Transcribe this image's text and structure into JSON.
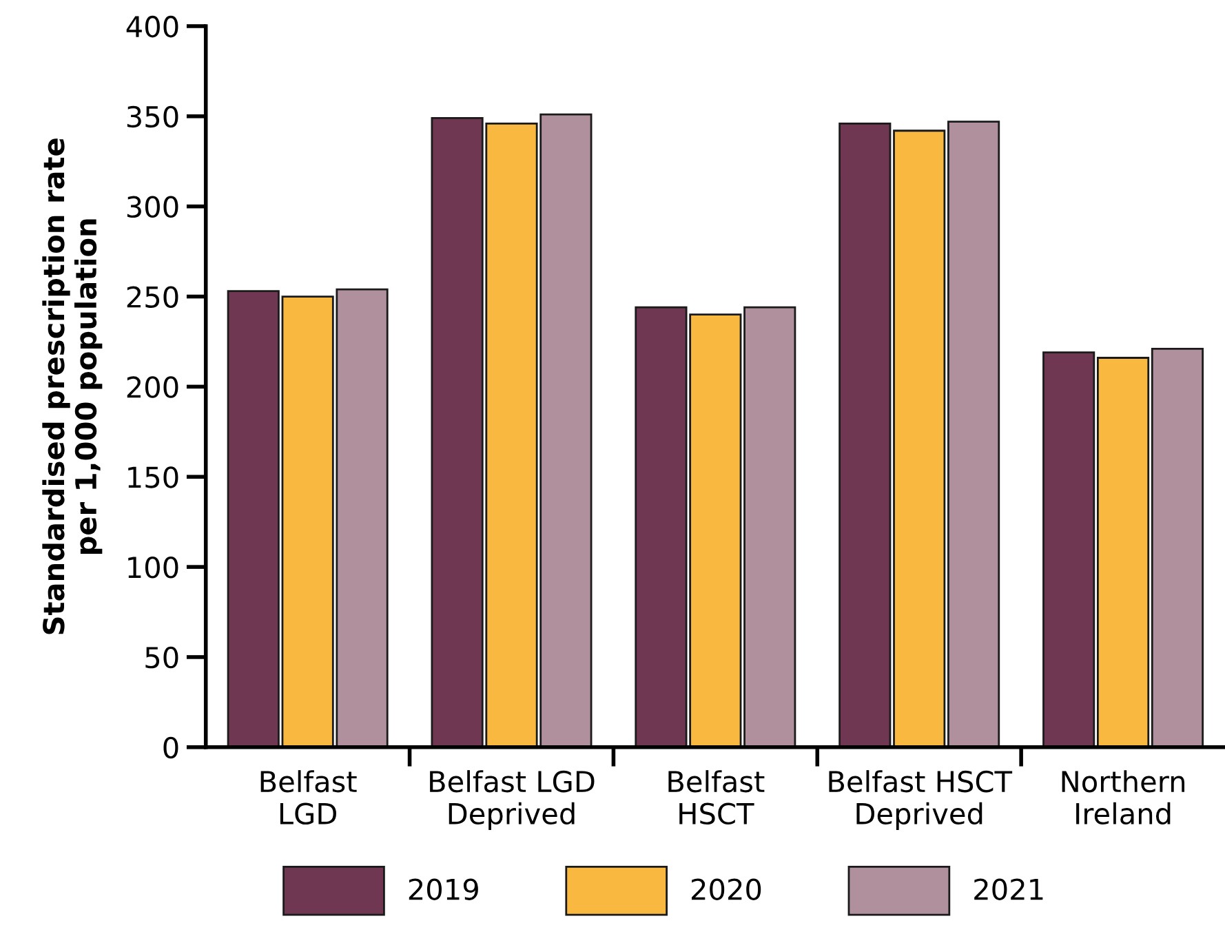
{
  "chart_data": {
    "type": "bar",
    "ylabel": "Standardised prescription rate\nper 1,000 population",
    "categories": [
      "Belfast\nLGD",
      "Belfast LGD\nDeprived",
      "Belfast\nHSCT",
      "Belfast HSCT\nDeprived",
      "Northern\nIreland"
    ],
    "series": [
      {
        "name": "2019",
        "color": "#6f3752",
        "values": [
          253,
          349,
          244,
          346,
          219
        ]
      },
      {
        "name": "2020",
        "color": "#f9b941",
        "values": [
          250,
          346,
          240,
          342,
          216
        ]
      },
      {
        "name": "2021",
        "color": "#b0909d",
        "values": [
          254,
          351,
          244,
          347,
          221
        ]
      }
    ],
    "ylim": [
      0,
      400
    ],
    "yticks": [
      0,
      50,
      100,
      150,
      200,
      250,
      300,
      350,
      400
    ],
    "grid": false,
    "legend": "bottom"
  }
}
